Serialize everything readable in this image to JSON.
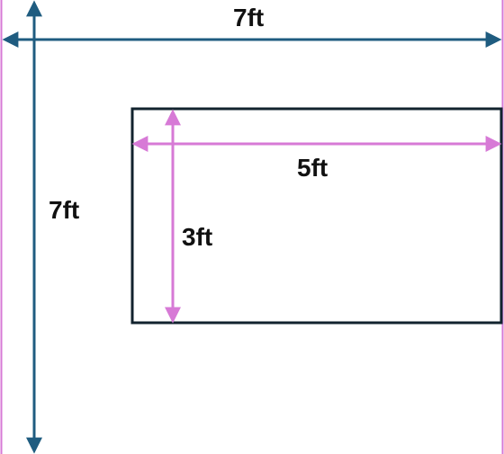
{
  "labels": {
    "outer_width": "7ft",
    "outer_height": "7ft",
    "inner_width": "5ft",
    "inner_height": "3ft"
  },
  "colors": {
    "outer_dimension_line": "#1f5c80",
    "inner_dimension_line": "#d77ad6",
    "inner_rectangle_border": "#12232e",
    "outer_square_border": "#d77ad6",
    "label_text": "#111111",
    "background": "#ffffff"
  }
}
